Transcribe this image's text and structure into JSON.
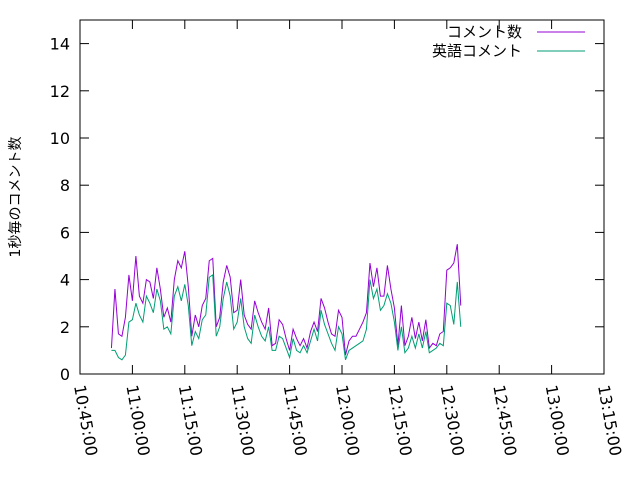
{
  "chart_data": {
    "type": "line",
    "title": "",
    "xlabel": "",
    "ylabel": "1秒毎のコメント数",
    "ylim": [
      0,
      15
    ],
    "yticks": [
      0,
      2,
      4,
      6,
      8,
      10,
      12,
      14
    ],
    "xlim_minutes": [
      0,
      150
    ],
    "xticks": [
      {
        "t": 0,
        "label": "10:45:00"
      },
      {
        "t": 15,
        "label": "11:00:00"
      },
      {
        "t": 30,
        "label": "11:15:00"
      },
      {
        "t": 45,
        "label": "11:30:00"
      },
      {
        "t": 60,
        "label": "11:45:00"
      },
      {
        "t": 75,
        "label": "12:00:00"
      },
      {
        "t": 90,
        "label": "12:15:00"
      },
      {
        "t": 105,
        "label": "12:30:00"
      },
      {
        "t": 120,
        "label": "12:45:00"
      },
      {
        "t": 135,
        "label": "13:00:00"
      },
      {
        "t": 150,
        "label": "13:15:00"
      }
    ],
    "legend_position": "top-right",
    "x_start": "10:54:00",
    "x_step_minutes": 1,
    "series": [
      {
        "name": "コメント数",
        "color": "#9400d3",
        "values": [
          1.1,
          3.6,
          1.7,
          1.6,
          2.4,
          4.2,
          3.1,
          5.0,
          3.3,
          3.0,
          4.0,
          3.9,
          3.2,
          4.5,
          3.6,
          2.4,
          2.8,
          2.2,
          4.0,
          4.8,
          4.5,
          5.2,
          3.7,
          1.6,
          2.5,
          2.0,
          2.9,
          3.2,
          4.8,
          4.9,
          2.0,
          2.4,
          3.9,
          4.6,
          4.1,
          2.6,
          2.7,
          4.0,
          2.5,
          2.1,
          1.9,
          3.1,
          2.6,
          2.2,
          1.9,
          2.8,
          1.2,
          1.3,
          2.3,
          2.1,
          1.5,
          1.0,
          1.9,
          1.5,
          1.2,
          1.5,
          1.1,
          1.8,
          2.2,
          1.8,
          3.2,
          2.8,
          2.2,
          1.7,
          1.6,
          2.7,
          2.4,
          0.8,
          1.4,
          1.6,
          1.6,
          1.9,
          2.2,
          2.6,
          4.7,
          3.7,
          4.5,
          3.3,
          3.3,
          4.6,
          3.6,
          2.8,
          1.2,
          2.9,
          1.2,
          1.6,
          2.4,
          1.5,
          2.2,
          1.4,
          2.3,
          1.1,
          1.3,
          1.2,
          1.7,
          1.8,
          4.4,
          4.5,
          4.7,
          5.5,
          2.9
        ]
      },
      {
        "name": "英語コメント",
        "color": "#009e73",
        "values": [
          1.0,
          1.0,
          0.7,
          0.6,
          0.8,
          2.2,
          2.3,
          3.0,
          2.5,
          2.2,
          3.3,
          3.0,
          2.6,
          3.6,
          3.1,
          1.9,
          2.0,
          1.7,
          3.3,
          3.7,
          3.1,
          3.8,
          2.9,
          1.2,
          1.8,
          1.5,
          2.3,
          2.5,
          4.1,
          4.2,
          1.6,
          2.0,
          3.2,
          3.9,
          3.3,
          1.9,
          2.2,
          3.2,
          2.0,
          1.5,
          1.3,
          2.5,
          2.0,
          1.6,
          1.4,
          2.0,
          1.0,
          1.0,
          1.6,
          1.5,
          1.1,
          0.7,
          1.5,
          1.0,
          0.9,
          1.2,
          0.9,
          1.4,
          1.9,
          1.4,
          2.7,
          2.1,
          1.7,
          1.3,
          1.0,
          2.0,
          1.7,
          0.6,
          1.0,
          1.1,
          1.2,
          1.3,
          1.4,
          1.9,
          4.0,
          3.2,
          3.6,
          2.7,
          2.9,
          3.4,
          3.0,
          2.2,
          1.0,
          2.0,
          0.9,
          1.1,
          1.6,
          1.1,
          1.7,
          1.1,
          1.8,
          0.9,
          1.0,
          1.1,
          1.3,
          1.2,
          3.0,
          2.9,
          2.1,
          3.9,
          2.0
        ]
      }
    ]
  }
}
